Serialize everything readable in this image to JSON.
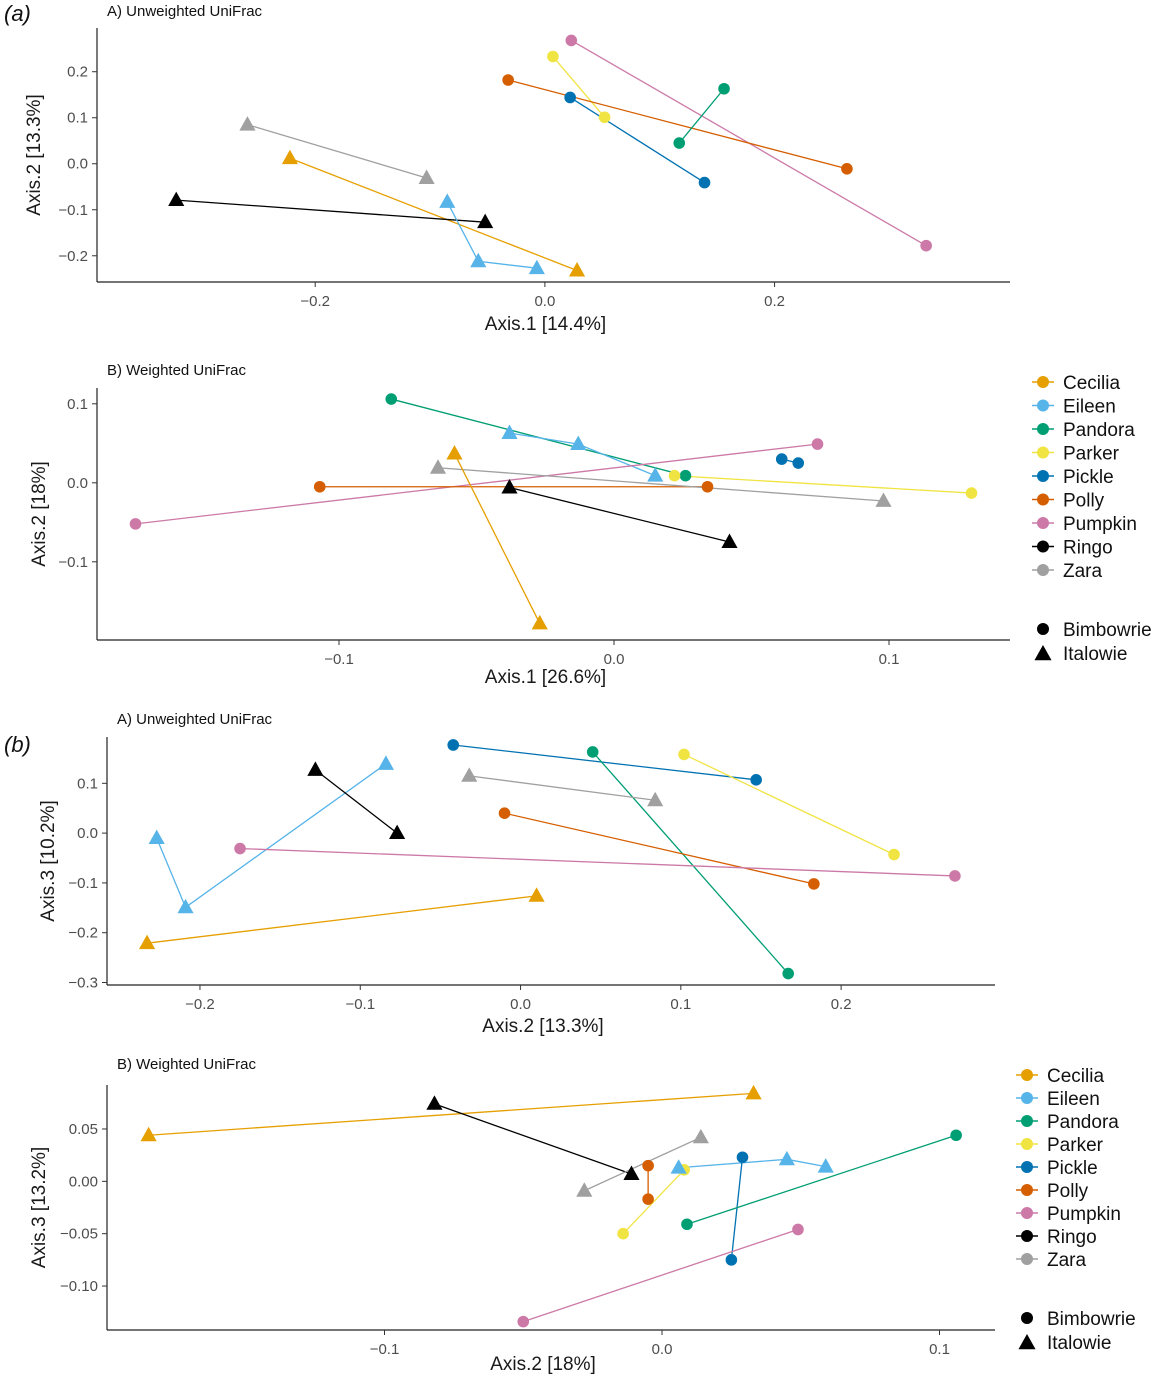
{
  "figure": {
    "part_labels": [
      "(a)",
      "(b)"
    ]
  },
  "colors": {
    "Cecilia": "#E69F00",
    "Eileen": "#56B4E9",
    "Pandora": "#009E73",
    "Parker": "#F0E442",
    "Pickle": "#0072B2",
    "Polly": "#D55E00",
    "Pumpkin": "#CC79A7",
    "Ringo": "#000000",
    "Zara": "#A0A0A0"
  },
  "legends": [
    {
      "names": [
        "Cecilia",
        "Eileen",
        "Pandora",
        "Parker",
        "Pickle",
        "Polly",
        "Pumpkin",
        "Ringo",
        "Zara"
      ],
      "shapes": [
        {
          "label": "Bimbowrie",
          "shape": "circle"
        },
        {
          "label": "Italowie",
          "shape": "triangle"
        }
      ]
    },
    {
      "names": [
        "Cecilia",
        "Eileen",
        "Pandora",
        "Parker",
        "Pickle",
        "Polly",
        "Pumpkin",
        "Ringo",
        "Zara"
      ],
      "shapes": [
        {
          "label": "Bimbowrie",
          "shape": "circle"
        },
        {
          "label": "Italowie",
          "shape": "triangle"
        }
      ]
    }
  ],
  "chart_data": [
    {
      "type": "scatter",
      "title": "A) Unweighted UniFrac",
      "xlabel": "Axis.1   [14.4%]",
      "ylabel": "Axis.2   [13.3%]",
      "xlim": [
        -0.39,
        0.405
      ],
      "ylim": [
        -0.257,
        0.295
      ],
      "xticks": [
        -0.2,
        0.0,
        0.2
      ],
      "xticklabels": [
        "−0.2",
        "0.0",
        "0.2"
      ],
      "yticks": [
        -0.2,
        -0.1,
        0.0,
        0.1,
        0.2
      ],
      "yticklabels": [
        "−0.2",
        "−0.1",
        "0.0",
        "0.1",
        "0.2"
      ],
      "series": [
        {
          "name": "Pumpkin",
          "points": [
            {
              "x": 0.023,
              "y": 0.268,
              "shape": "circle"
            },
            {
              "x": 0.332,
              "y": -0.178,
              "shape": "circle"
            }
          ]
        },
        {
          "name": "Parker",
          "points": [
            {
              "x": 0.007,
              "y": 0.233,
              "shape": "circle"
            },
            {
              "x": 0.052,
              "y": 0.101,
              "shape": "circle"
            }
          ]
        },
        {
          "name": "Polly",
          "points": [
            {
              "x": -0.032,
              "y": 0.182,
              "shape": "circle"
            },
            {
              "x": 0.263,
              "y": -0.011,
              "shape": "circle"
            }
          ]
        },
        {
          "name": "Pickle",
          "points": [
            {
              "x": 0.022,
              "y": 0.144,
              "shape": "circle"
            },
            {
              "x": 0.139,
              "y": -0.041,
              "shape": "circle"
            }
          ]
        },
        {
          "name": "Pandora",
          "points": [
            {
              "x": 0.156,
              "y": 0.163,
              "shape": "circle"
            },
            {
              "x": 0.117,
              "y": 0.045,
              "shape": "circle"
            }
          ]
        },
        {
          "name": "Zara",
          "points": [
            {
              "x": -0.259,
              "y": 0.085,
              "shape": "triangle"
            },
            {
              "x": -0.103,
              "y": -0.031,
              "shape": "triangle"
            }
          ]
        },
        {
          "name": "Cecilia",
          "points": [
            {
              "x": -0.222,
              "y": 0.012,
              "shape": "triangle"
            },
            {
              "x": 0.028,
              "y": -0.232,
              "shape": "triangle"
            }
          ]
        },
        {
          "name": "Ringo",
          "points": [
            {
              "x": -0.321,
              "y": -0.079,
              "shape": "triangle"
            },
            {
              "x": -0.052,
              "y": -0.127,
              "shape": "triangle"
            }
          ]
        },
        {
          "name": "Eileen",
          "points": [
            {
              "x": -0.085,
              "y": -0.083,
              "shape": "triangle"
            },
            {
              "x": -0.058,
              "y": -0.212,
              "shape": "triangle"
            },
            {
              "x": -0.007,
              "y": -0.227,
              "shape": "triangle"
            }
          ]
        }
      ]
    },
    {
      "type": "scatter",
      "title": "B) Weighted UniFrac",
      "xlabel": "Axis.1   [26.6%]",
      "ylabel": "Axis.2   [18%]",
      "xlim": [
        -0.188,
        0.144
      ],
      "ylim": [
        -0.199,
        0.12
      ],
      "xticks": [
        -0.1,
        0.0,
        0.1
      ],
      "xticklabels": [
        "−0.1",
        "0.0",
        "0.1"
      ],
      "yticks": [
        -0.1,
        0.0,
        0.1
      ],
      "yticklabels": [
        "−0.1",
        "0.0",
        "0.1"
      ],
      "series": [
        {
          "name": "Pandora",
          "points": [
            {
              "x": -0.081,
              "y": 0.106,
              "shape": "circle"
            },
            {
              "x": 0.026,
              "y": 0.009,
              "shape": "circle"
            }
          ]
        },
        {
          "name": "Eileen",
          "points": [
            {
              "x": -0.038,
              "y": 0.063,
              "shape": "triangle"
            },
            {
              "x": -0.013,
              "y": 0.049,
              "shape": "triangle"
            },
            {
              "x": 0.015,
              "y": 0.009,
              "shape": "triangle"
            }
          ]
        },
        {
          "name": "Pumpkin",
          "points": [
            {
              "x": -0.174,
              "y": -0.052,
              "shape": "circle"
            },
            {
              "x": 0.074,
              "y": 0.049,
              "shape": "circle"
            }
          ]
        },
        {
          "name": "Pickle",
          "points": [
            {
              "x": 0.061,
              "y": 0.03,
              "shape": "circle"
            },
            {
              "x": 0.067,
              "y": 0.025,
              "shape": "circle"
            }
          ]
        },
        {
          "name": "Parker",
          "points": [
            {
              "x": 0.022,
              "y": 0.009,
              "shape": "circle"
            },
            {
              "x": 0.13,
              "y": -0.013,
              "shape": "circle"
            }
          ]
        },
        {
          "name": "Polly",
          "points": [
            {
              "x": -0.107,
              "y": -0.005,
              "shape": "circle"
            },
            {
              "x": 0.034,
              "y": -0.005,
              "shape": "circle"
            }
          ]
        },
        {
          "name": "Zara",
          "points": [
            {
              "x": -0.064,
              "y": 0.019,
              "shape": "triangle"
            },
            {
              "x": 0.098,
              "y": -0.023,
              "shape": "triangle"
            }
          ]
        },
        {
          "name": "Cecilia",
          "points": [
            {
              "x": -0.058,
              "y": 0.037,
              "shape": "triangle"
            },
            {
              "x": -0.027,
              "y": -0.178,
              "shape": "triangle"
            }
          ]
        },
        {
          "name": "Ringo",
          "points": [
            {
              "x": -0.038,
              "y": -0.006,
              "shape": "triangle"
            },
            {
              "x": 0.042,
              "y": -0.075,
              "shape": "triangle"
            }
          ]
        }
      ]
    },
    {
      "type": "scatter",
      "title": "A) Unweighted UniFrac",
      "xlabel": "Axis.2   [13.3%]",
      "ylabel": "Axis.3   [10.2%]",
      "xlim": [
        -0.258,
        0.296
      ],
      "ylim": [
        -0.305,
        0.193
      ],
      "xticks": [
        -0.2,
        -0.1,
        0.0,
        0.1,
        0.2
      ],
      "xticklabels": [
        "−0.2",
        "−0.1",
        "0.0",
        "0.1",
        "0.2"
      ],
      "yticks": [
        -0.3,
        -0.2,
        -0.1,
        0.0,
        0.1
      ],
      "yticklabels": [
        "−0.3",
        "−0.2",
        "−0.1",
        "0.0",
        "0.1"
      ],
      "series": [
        {
          "name": "Pickle",
          "points": [
            {
              "x": -0.042,
              "y": 0.177,
              "shape": "circle"
            },
            {
              "x": 0.147,
              "y": 0.107,
              "shape": "circle"
            }
          ]
        },
        {
          "name": "Pandora",
          "points": [
            {
              "x": 0.045,
              "y": 0.163,
              "shape": "circle"
            },
            {
              "x": 0.167,
              "y": -0.282,
              "shape": "circle"
            }
          ]
        },
        {
          "name": "Parker",
          "points": [
            {
              "x": 0.102,
              "y": 0.158,
              "shape": "circle"
            },
            {
              "x": 0.233,
              "y": -0.043,
              "shape": "circle"
            }
          ]
        },
        {
          "name": "Eileen",
          "points": [
            {
              "x": -0.227,
              "y": -0.01,
              "shape": "triangle"
            },
            {
              "x": -0.209,
              "y": -0.149,
              "shape": "triangle"
            },
            {
              "x": -0.084,
              "y": 0.139,
              "shape": "triangle"
            }
          ]
        },
        {
          "name": "Ringo",
          "points": [
            {
              "x": -0.128,
              "y": 0.127,
              "shape": "triangle"
            },
            {
              "x": -0.077,
              "y": 0.0,
              "shape": "triangle"
            }
          ]
        },
        {
          "name": "Zara",
          "points": [
            {
              "x": -0.032,
              "y": 0.115,
              "shape": "triangle"
            },
            {
              "x": 0.084,
              "y": 0.066,
              "shape": "triangle"
            }
          ]
        },
        {
          "name": "Polly",
          "points": [
            {
              "x": -0.01,
              "y": 0.04,
              "shape": "circle"
            },
            {
              "x": 0.183,
              "y": -0.102,
              "shape": "circle"
            }
          ]
        },
        {
          "name": "Pumpkin",
          "points": [
            {
              "x": -0.175,
              "y": -0.031,
              "shape": "circle"
            },
            {
              "x": 0.271,
              "y": -0.086,
              "shape": "circle"
            }
          ]
        },
        {
          "name": "Cecilia",
          "points": [
            {
              "x": -0.233,
              "y": -0.221,
              "shape": "triangle"
            },
            {
              "x": 0.01,
              "y": -0.126,
              "shape": "triangle"
            }
          ]
        }
      ]
    },
    {
      "type": "scatter",
      "title": "B) Weighted UniFrac",
      "xlabel": "Axis.2   [18%]",
      "ylabel": "Axis.3   [13.2%]",
      "xlim": [
        -0.2,
        0.12
      ],
      "ylim": [
        -0.142,
        0.092
      ],
      "xticks": [
        -0.1,
        0.0,
        0.1
      ],
      "xticklabels": [
        "−0.1",
        "0.0",
        "0.1"
      ],
      "yticks": [
        -0.1,
        -0.05,
        0.0,
        0.05
      ],
      "yticklabels": [
        "−0.10",
        "−0.05",
        "0.00",
        "0.05"
      ],
      "series": [
        {
          "name": "Cecilia",
          "points": [
            {
              "x": -0.185,
              "y": 0.044,
              "shape": "triangle"
            },
            {
              "x": 0.033,
              "y": 0.084,
              "shape": "triangle"
            }
          ]
        },
        {
          "name": "Ringo",
          "points": [
            {
              "x": -0.082,
              "y": 0.074,
              "shape": "triangle"
            },
            {
              "x": -0.011,
              "y": 0.007,
              "shape": "triangle"
            }
          ]
        },
        {
          "name": "Zara",
          "points": [
            {
              "x": -0.028,
              "y": -0.009,
              "shape": "triangle"
            },
            {
              "x": 0.014,
              "y": 0.042,
              "shape": "triangle"
            }
          ]
        },
        {
          "name": "Polly",
          "points": [
            {
              "x": -0.005,
              "y": 0.015,
              "shape": "circle"
            },
            {
              "x": -0.005,
              "y": -0.017,
              "shape": "circle"
            }
          ]
        },
        {
          "name": "Parker",
          "points": [
            {
              "x": -0.014,
              "y": -0.05,
              "shape": "circle"
            },
            {
              "x": 0.008,
              "y": 0.011,
              "shape": "circle"
            }
          ]
        },
        {
          "name": "Eileen",
          "points": [
            {
              "x": 0.006,
              "y": 0.013,
              "shape": "triangle"
            },
            {
              "x": 0.045,
              "y": 0.021,
              "shape": "triangle"
            },
            {
              "x": 0.059,
              "y": 0.014,
              "shape": "triangle"
            }
          ]
        },
        {
          "name": "Pickle",
          "points": [
            {
              "x": 0.029,
              "y": 0.023,
              "shape": "circle"
            },
            {
              "x": 0.025,
              "y": -0.075,
              "shape": "circle"
            }
          ]
        },
        {
          "name": "Pandora",
          "points": [
            {
              "x": 0.106,
              "y": 0.044,
              "shape": "circle"
            },
            {
              "x": 0.009,
              "y": -0.041,
              "shape": "circle"
            }
          ]
        },
        {
          "name": "Pumpkin",
          "points": [
            {
              "x": -0.05,
              "y": -0.134,
              "shape": "circle"
            },
            {
              "x": 0.049,
              "y": -0.046,
              "shape": "circle"
            }
          ]
        }
      ]
    }
  ]
}
